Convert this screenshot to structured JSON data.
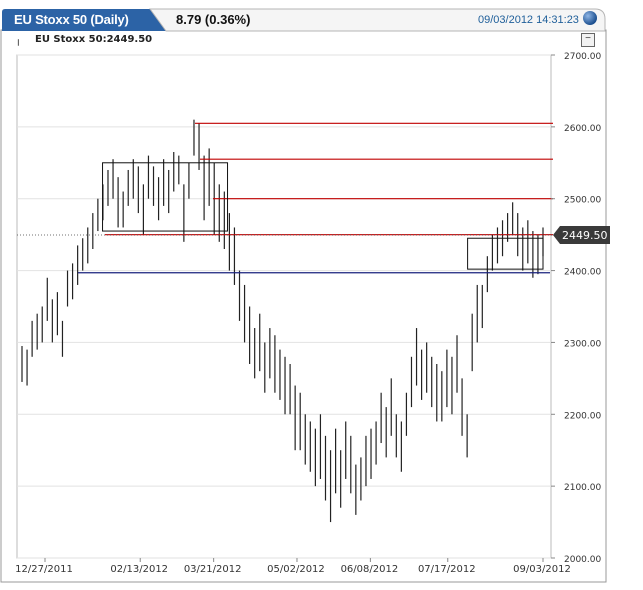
{
  "header": {
    "title": "EU Stoxx 50 (Daily)",
    "change": "8.79 (0.36%)",
    "timestamp": "09/03/2012 14:31:23"
  },
  "chart_data": {
    "type": "ohlc",
    "title": "EU Stoxx 50:2449.50",
    "last_price": 2449.5,
    "last_price_label": "2449.50",
    "ylim": [
      2000,
      2700
    ],
    "y_ticks": [
      "2700.00",
      "2600.00",
      "2500.00",
      "2400.00",
      "2300.00",
      "2200.00",
      "2100.00",
      "2000.00"
    ],
    "x_ticks": [
      "12/27/2011",
      "02/13/2012",
      "03/21/2012",
      "05/02/2012",
      "06/08/2012",
      "07/17/2012",
      "09/03/2012"
    ],
    "grid": true,
    "colors": {
      "price_bars": "#222222",
      "resistance": "#c00000",
      "support": "#1a237e",
      "accent": "#1c5fa8"
    },
    "resistance_lines": [
      2605,
      2555,
      2500,
      2450
    ],
    "support_line": 2397,
    "boxes": [
      {
        "x_start": "01/25/2012",
        "x_end": "03/28/2012",
        "y_low": 2455,
        "y_high": 2550
      },
      {
        "x_start": "07/27/2012",
        "x_end": "09/03/2012",
        "y_low": 2402,
        "y_high": 2445
      }
    ],
    "bars_high": [
      2295,
      2290,
      2330,
      2340,
      2350,
      2390,
      2360,
      2370,
      2330,
      2400,
      2410,
      2435,
      2445,
      2460,
      2480,
      2500,
      2520,
      2540,
      2555,
      2530,
      2510,
      2540,
      2555,
      2545,
      2520,
      2560,
      2545,
      2530,
      2555,
      2540,
      2565,
      2560,
      2520,
      2550,
      2610,
      2605,
      2560,
      2570,
      2550,
      2520,
      2510,
      2480,
      2460,
      2400,
      2380,
      2350,
      2320,
      2340,
      2300,
      2320,
      2310,
      2290,
      2280,
      2270,
      2240,
      2230,
      2200,
      2190,
      2180,
      2200,
      2170,
      2150,
      2180,
      2150,
      2190,
      2170,
      2130,
      2140,
      2170,
      2180,
      2190,
      2230,
      2210,
      2250,
      2200,
      2190,
      2230,
      2280,
      2320,
      2290,
      2300,
      2280,
      2270,
      2260,
      2290,
      2280,
      2310,
      2250,
      2200,
      2340,
      2380,
      2380,
      2420,
      2450,
      2460,
      2470,
      2480,
      2495,
      2480,
      2460,
      2470,
      2455,
      2450,
      2460
    ],
    "bars_low": [
      2245,
      2240,
      2280,
      2290,
      2300,
      2330,
      2300,
      2310,
      2280,
      2350,
      2360,
      2380,
      2400,
      2410,
      2430,
      2455,
      2470,
      2490,
      2500,
      2460,
      2460,
      2490,
      2500,
      2480,
      2450,
      2500,
      2490,
      2470,
      2490,
      2480,
      2510,
      2520,
      2440,
      2500,
      2560,
      2540,
      2470,
      2490,
      2450,
      2440,
      2430,
      2400,
      2380,
      2330,
      2300,
      2270,
      2250,
      2260,
      2230,
      2250,
      2230,
      2220,
      2200,
      2200,
      2150,
      2150,
      2130,
      2120,
      2100,
      2110,
      2080,
      2050,
      2090,
      2070,
      2110,
      2090,
      2060,
      2080,
      2100,
      2110,
      2130,
      2160,
      2140,
      2170,
      2140,
      2120,
      2170,
      2210,
      2240,
      2220,
      2230,
      2210,
      2190,
      2190,
      2210,
      2200,
      2230,
      2170,
      2140,
      2260,
      2300,
      2320,
      2370,
      2400,
      2410,
      2420,
      2440,
      2450,
      2420,
      2400,
      2410,
      2390,
      2395,
      2420
    ]
  }
}
